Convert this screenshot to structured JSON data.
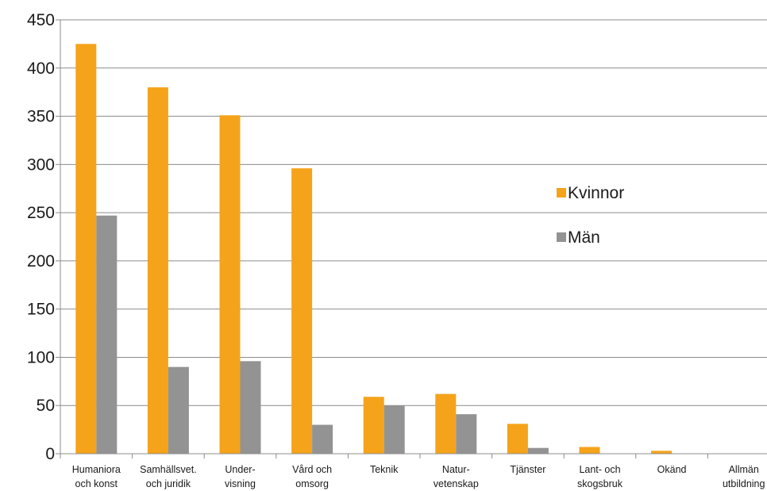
{
  "chart_data": {
    "type": "bar",
    "categories": [
      [
        "Humaniora",
        "och konst"
      ],
      [
        "Samhällsvet.",
        "och juridik"
      ],
      [
        "Under-",
        "visning"
      ],
      [
        "Vård och",
        "omsorg"
      ],
      [
        "Teknik"
      ],
      [
        "Natur-",
        "vetenskap"
      ],
      [
        "Tjänster"
      ],
      [
        "Lant- och",
        "skogsbruk"
      ],
      [
        "Okänd"
      ],
      [
        "Allmän",
        "utbildning"
      ]
    ],
    "series": [
      {
        "name": "Kvinnor",
        "color": "#F5A31A",
        "values": [
          425,
          380,
          351,
          296,
          59,
          62,
          31,
          7,
          3,
          0
        ]
      },
      {
        "name": "Män",
        "color": "#939393",
        "values": [
          247,
          90,
          96,
          30,
          50,
          41,
          6,
          0,
          0,
          0
        ]
      }
    ],
    "ylim": [
      0,
      450
    ],
    "yticks": [
      "0",
      "50",
      "100",
      "150",
      "200",
      "250",
      "300",
      "350",
      "400",
      "450"
    ],
    "grid": true,
    "gridColor": "#8c8c8c",
    "legend_position": "right"
  }
}
